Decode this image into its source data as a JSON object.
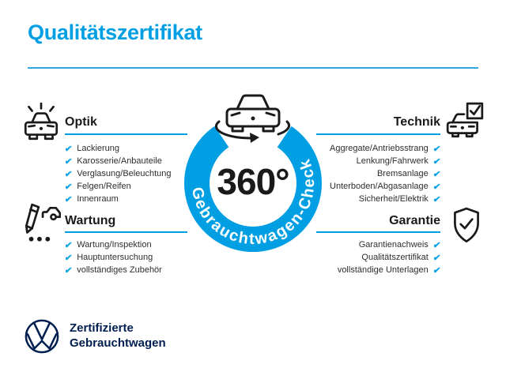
{
  "page": {
    "title": "Qualitätszertifikat"
  },
  "colors": {
    "accent_blue": "#009FE3",
    "dark_navy": "#001E50",
    "text_dark": "#1a1a1a"
  },
  "checkmark": "✔",
  "center_badge": {
    "degrees": "360°",
    "ring_label": "Gebrauchtwagen-Check",
    "icon": "car-360-rotation-icon"
  },
  "sections": [
    {
      "id": "optik",
      "label": "Optik",
      "icon": "car-front-shine-icon",
      "align": "left",
      "items": [
        "Lackierung",
        "Karosserie/Anbauteile",
        "Verglasung/Beleuchtung",
        "Felgen/Reifen",
        "Innenraum"
      ]
    },
    {
      "id": "technik",
      "label": "Technik",
      "icon": "car-checkbox-icon",
      "align": "right",
      "items": [
        "Aggregate/Antriebsstrang",
        "Lenkung/Fahrwerk",
        "Bremsanlage",
        "Unterboden/Abgasanlage",
        "Sicherheit/Elektrik"
      ]
    },
    {
      "id": "wartung",
      "label": "Wartung",
      "icon": "pencil-car-checklist-icon",
      "align": "left",
      "items": [
        "Wartung/Inspektion",
        "Hauptuntersuchung",
        "vollständiges Zubehör"
      ]
    },
    {
      "id": "garantie",
      "label": "Garantie",
      "icon": "shield-check-icon",
      "align": "right",
      "items": [
        "Garantienachweis",
        "Qualitätszertifikat",
        "vollständige Unterlagen"
      ]
    }
  ],
  "footer": {
    "logo": "vw-logo",
    "line1": "Zertifizierte",
    "line2": "Gebrauchtwagen"
  }
}
